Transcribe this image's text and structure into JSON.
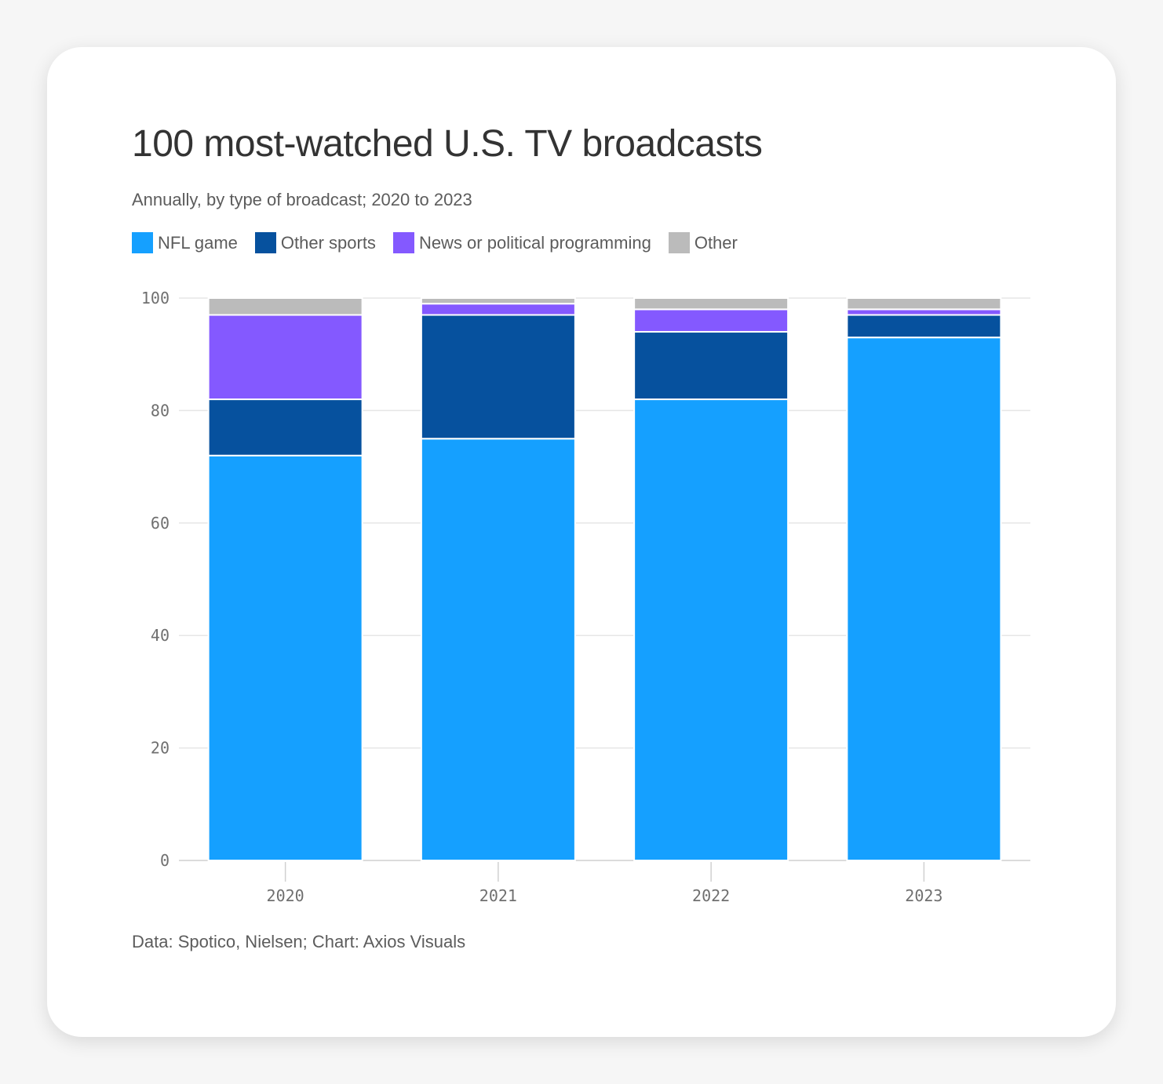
{
  "title": "100 most-watched U.S. TV broadcasts",
  "subtitle": "Annually, by type of broadcast; 2020 to 2023",
  "source": "Data: Spotico, Nielsen; Chart: Axios Visuals",
  "legend": [
    {
      "label": "NFL game",
      "color": "#15a0ff"
    },
    {
      "label": "Other sports",
      "color": "#06519e"
    },
    {
      "label": "News or political programming",
      "color": "#8459ff"
    },
    {
      "label": "Other",
      "color": "#bbbbbb"
    }
  ],
  "chart_data": {
    "type": "bar",
    "stacked": true,
    "title": "100 most-watched U.S. TV broadcasts",
    "subtitle": "Annually, by type of broadcast; 2020 to 2023",
    "categories": [
      "2020",
      "2021",
      "2022",
      "2023"
    ],
    "series": [
      {
        "name": "NFL game",
        "color": "#15a0ff",
        "values": [
          72,
          75,
          82,
          93
        ]
      },
      {
        "name": "Other sports",
        "color": "#06519e",
        "values": [
          10,
          22,
          12,
          4
        ]
      },
      {
        "name": "News or political programming",
        "color": "#8459ff",
        "values": [
          15,
          2,
          4,
          1
        ]
      },
      {
        "name": "Other",
        "color": "#bbbbbb",
        "values": [
          3,
          1,
          2,
          2
        ]
      }
    ],
    "ylim": [
      0,
      100
    ],
    "yticks": [
      0,
      20,
      40,
      60,
      80,
      100
    ],
    "grid": true,
    "legend_position": "top-left"
  }
}
